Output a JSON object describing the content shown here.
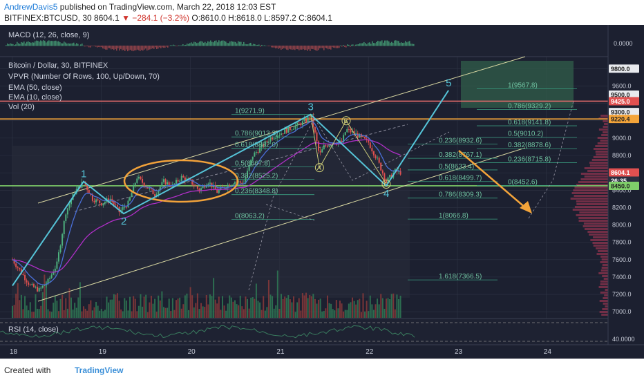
{
  "header": {
    "author": "AndrewDavis5",
    "published": "published on TradingView.com, March 22, 2018 12:03 EST",
    "symbol": "BITFINEX:BTCUSD, 30",
    "last": "8604.1",
    "change": "▼ −284.1 (−3.2%)",
    "ohlc": "O:8610.0  H:8618.0  L:8597.2  C:8604.1"
  },
  "footer": {
    "created_with": "Created with",
    "brand": "TradingView"
  },
  "colors": {
    "background": "#1c2030",
    "grid": "#2e3344",
    "candle_up": "#4caf7d",
    "candle_down": "#e0504f",
    "elliott": "#55c4d8",
    "ellipse": "#f2a23a",
    "channel": "#d8d7a2",
    "fib": "#3a9e80",
    "ema50": "#b02fc8",
    "ema10": "#4a6fd8",
    "resistance": "#e06a6a",
    "support": "#f3a43a"
  },
  "indicators": {
    "macd": "MACD (12, 26, close, 9)",
    "title": "Bitcoin / Dollar, 30, BITFINEX",
    "vpvr": "VPVR (Number Of Rows, 100, Up/Down, 70)",
    "ema50": "EMA (50, close)",
    "ema10": "EMA (10, close)",
    "vol": "Vol (20)",
    "rsi": "RSI (14, close)"
  },
  "chart_data": {
    "type": "line",
    "title": "Bitcoin / Dollar, 30, BITFINEX",
    "x_ticks": [
      "18",
      "19",
      "20",
      "21",
      "22",
      "23",
      "24"
    ],
    "y_ticks": [
      7000,
      7200,
      7400,
      7600,
      7800,
      8000,
      8200,
      8400,
      8600,
      8800,
      9000,
      9200,
      9400,
      9600,
      9800
    ],
    "ylim": [
      6930,
      9930
    ],
    "macd_axis_label": "0.0000",
    "rsi_axis_label": "40.0000",
    "price_badges": [
      {
        "label": "9800.0",
        "value": 9800,
        "style": "light"
      },
      {
        "label": "9500.0",
        "value": 9500,
        "style": "light"
      },
      {
        "label": "9425.0",
        "value": 9425,
        "style": "red"
      },
      {
        "label": "9300.0",
        "value": 9300,
        "style": "light"
      },
      {
        "label": "9220.4",
        "value": 9220.4,
        "style": "orange"
      },
      {
        "label": "8604.1",
        "value": 8604.1,
        "style": "red"
      },
      {
        "label": "26:35",
        "value": 8510,
        "style": "dark"
      },
      {
        "label": "8450.0",
        "value": 8450,
        "style": "green"
      }
    ],
    "horizontal_lines": [
      {
        "value": 9425,
        "color": "red"
      },
      {
        "value": 9220.4,
        "color": "orange"
      },
      {
        "value": 8450,
        "color": "green"
      }
    ],
    "elliott_points": [
      {
        "label": "1",
        "x": 18.8,
        "y": 8500
      },
      {
        "label": "2",
        "x": 19.25,
        "y": 8130
      },
      {
        "label": "3",
        "x": 21.35,
        "y": 9271.9
      },
      {
        "label": "4",
        "x": 22.2,
        "y": 8450
      },
      {
        "label": "5",
        "x": 22.9,
        "y": 9550
      }
    ],
    "abc_points": [
      {
        "label": "A",
        "x": 21.45,
        "y": 8660
      },
      {
        "label": "B",
        "x": 21.75,
        "y": 9200
      },
      {
        "label": "C",
        "x": 22.2,
        "y": 8470
      }
    ],
    "fib_left": [
      {
        "label": "1(9271.9)",
        "value": 9271.9
      },
      {
        "label": "0.786(9013.3)",
        "value": 9013.3
      },
      {
        "label": "0.618(8882.0)",
        "value": 8882.0
      },
      {
        "label": "0.5(8667.8)",
        "value": 8667.8
      },
      {
        "label": "0.382(8525.2)",
        "value": 8525.2
      },
      {
        "label": "0.236(8348.8)",
        "value": 8348.8
      },
      {
        "label": "0(8063.2)",
        "value": 8063.2
      }
    ],
    "fib_right": [
      {
        "label": "0.236(8932.6)",
        "value": 8932.6
      },
      {
        "label": "0.382(8767.1)",
        "value": 8767.1
      },
      {
        "label": "0.5(8633.4)",
        "value": 8633.4
      },
      {
        "label": "0.618(8499.7)",
        "value": 8499.7
      },
      {
        "label": "0.786(8309.3)",
        "value": 8309.3
      },
      {
        "label": "1(8066.8)",
        "value": 8066.8
      },
      {
        "label": "1.618(7366.5)",
        "value": 7366.5
      }
    ],
    "fib_upper": [
      {
        "label": "1(9567.8)",
        "value": 9567.8
      },
      {
        "label": "0.786(9329.2)",
        "value": 9329.2
      },
      {
        "label": "0.618(9141.8)",
        "value": 9141.8
      },
      {
        "label": "0.5(9010.2)",
        "value": 9010.2
      },
      {
        "label": "0.382(8878.6)",
        "value": 8878.6
      },
      {
        "label": "0.236(8715.8)",
        "value": 8715.8
      },
      {
        "label": "0(8452.6)",
        "value": 8452.6
      }
    ],
    "price_path": [
      {
        "x": 18.0,
        "y": 7600
      },
      {
        "x": 18.1,
        "y": 7450
      },
      {
        "x": 18.2,
        "y": 7300
      },
      {
        "x": 18.3,
        "y": 7250
      },
      {
        "x": 18.4,
        "y": 7350
      },
      {
        "x": 18.5,
        "y": 7550
      },
      {
        "x": 18.6,
        "y": 8150
      },
      {
        "x": 18.7,
        "y": 8380
      },
      {
        "x": 18.8,
        "y": 8500
      },
      {
        "x": 18.9,
        "y": 8300
      },
      {
        "x": 19.0,
        "y": 8250
      },
      {
        "x": 19.1,
        "y": 8300
      },
      {
        "x": 19.2,
        "y": 8150
      },
      {
        "x": 19.3,
        "y": 8250
      },
      {
        "x": 19.4,
        "y": 8550
      },
      {
        "x": 19.5,
        "y": 8450
      },
      {
        "x": 19.6,
        "y": 8350
      },
      {
        "x": 19.7,
        "y": 8500
      },
      {
        "x": 19.8,
        "y": 8450
      },
      {
        "x": 19.9,
        "y": 8550
      },
      {
        "x": 20.0,
        "y": 8500
      },
      {
        "x": 20.1,
        "y": 8400
      },
      {
        "x": 20.2,
        "y": 8500
      },
      {
        "x": 20.3,
        "y": 8380
      },
      {
        "x": 20.4,
        "y": 8450
      },
      {
        "x": 20.5,
        "y": 8500
      },
      {
        "x": 20.6,
        "y": 8480
      },
      {
        "x": 20.7,
        "y": 8800
      },
      {
        "x": 20.8,
        "y": 8900
      },
      {
        "x": 20.9,
        "y": 9000
      },
      {
        "x": 21.0,
        "y": 9050
      },
      {
        "x": 21.1,
        "y": 9100
      },
      {
        "x": 21.2,
        "y": 9150
      },
      {
        "x": 21.3,
        "y": 9200
      },
      {
        "x": 21.35,
        "y": 9270
      },
      {
        "x": 21.4,
        "y": 9050
      },
      {
        "x": 21.45,
        "y": 8800
      },
      {
        "x": 21.5,
        "y": 8900
      },
      {
        "x": 21.6,
        "y": 8950
      },
      {
        "x": 21.7,
        "y": 8950
      },
      {
        "x": 21.75,
        "y": 9100
      },
      {
        "x": 21.85,
        "y": 9050
      },
      {
        "x": 22.0,
        "y": 8950
      },
      {
        "x": 22.1,
        "y": 8750
      },
      {
        "x": 22.2,
        "y": 8500
      },
      {
        "x": 22.3,
        "y": 8620
      },
      {
        "x": 22.35,
        "y": 8604
      }
    ]
  }
}
